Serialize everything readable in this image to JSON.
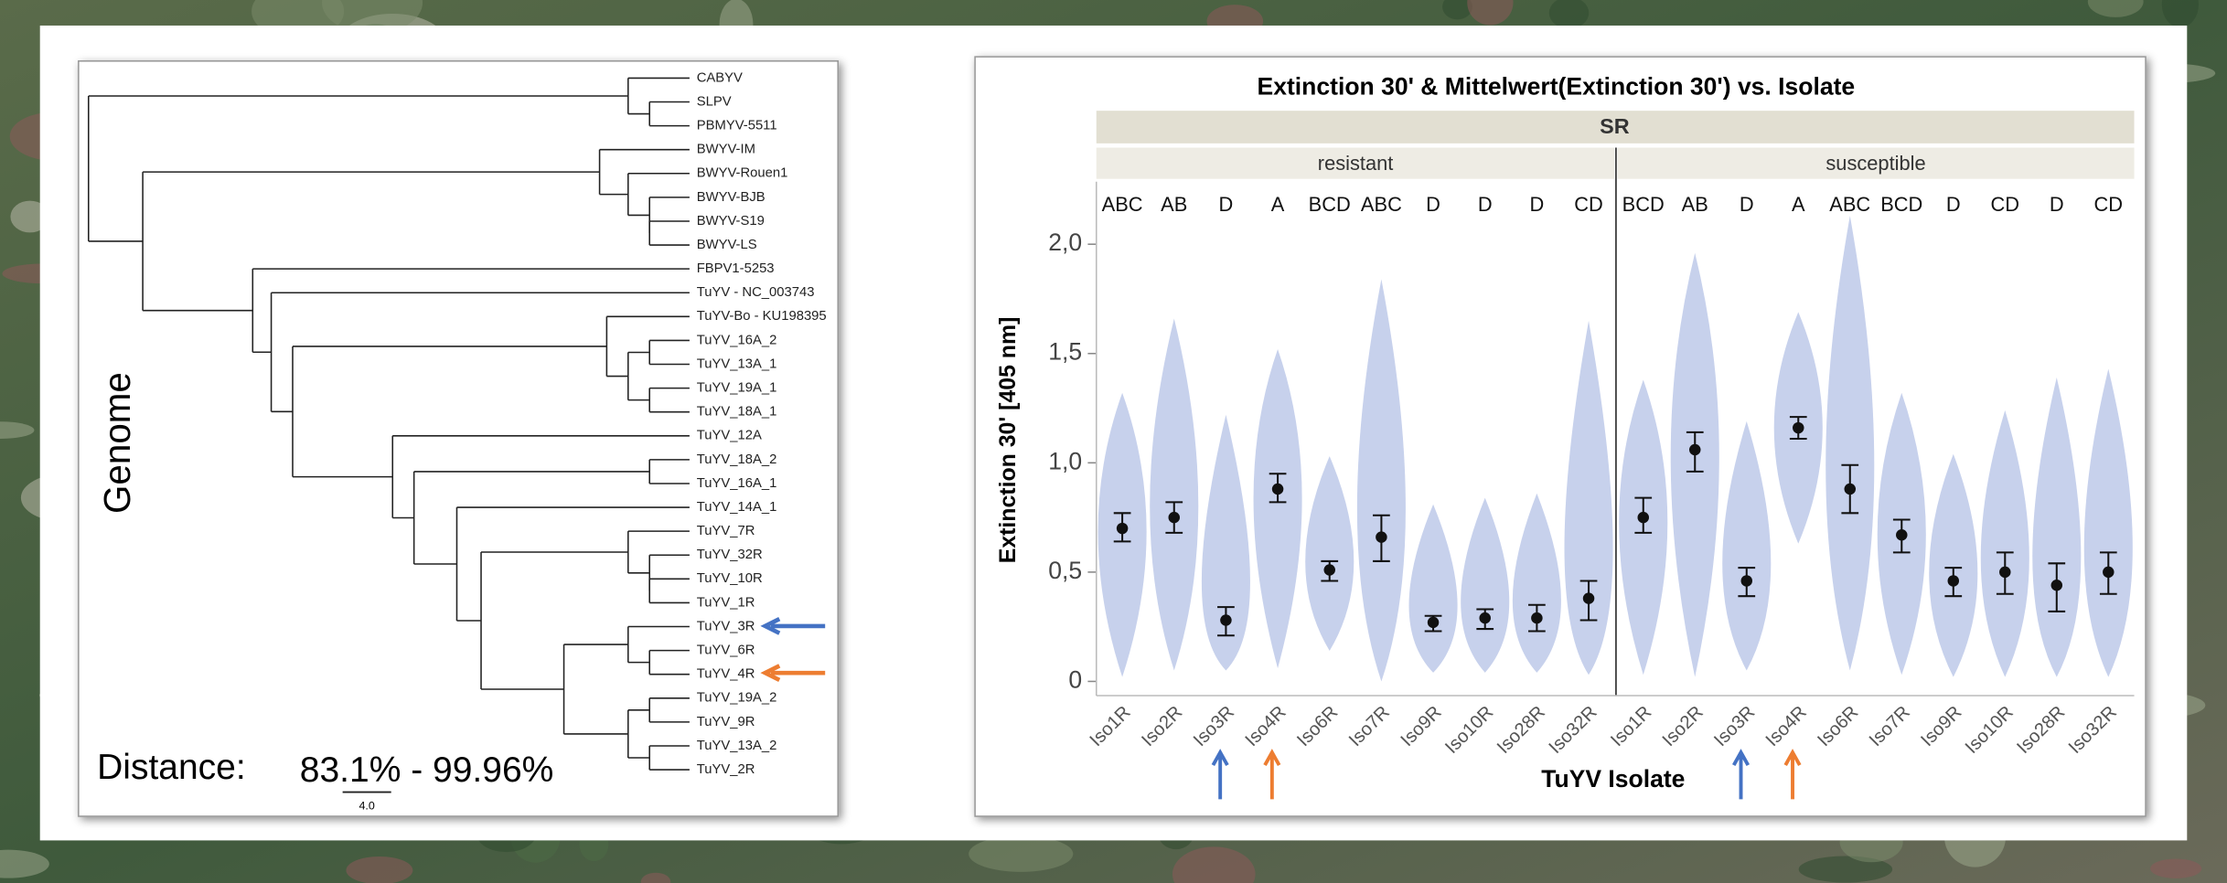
{
  "tree": {
    "title": "Genome",
    "leaves": [
      "CABYV",
      "SLPV",
      "PBMYV-5511",
      "BWYV-IM",
      "BWYV-Rouen1",
      "BWYV-BJB",
      "BWYV-S19",
      "BWYV-LS",
      "FBPV1-5253",
      "TuYV - NC_003743",
      "TuYV-Bo - KU198395",
      "TuYV_16A_2",
      "TuYV_13A_1",
      "TuYV_19A_1",
      "TuYV_18A_1",
      "TuYV_12A",
      "TuYV_18A_2",
      "TuYV_16A_1",
      "TuYV_14A_1",
      "TuYV_7R",
      "TuYV_32R",
      "TuYV_10R",
      "TuYV_1R",
      "TuYV_3R",
      "TuYV_6R",
      "TuYV_4R",
      "TuYV_19A_2",
      "TuYV_9R",
      "TuYV_13A_2",
      "TuYV_2R"
    ],
    "distance_label": "Distance:",
    "distance_range": "83.1% - 99.96%",
    "scale_label": "4.0"
  },
  "chart_data": {
    "type": "violin",
    "title": "Extinction 30' & Mittelwert(Extinction 30') vs. Isolate",
    "facet_title": "SR",
    "y_label": "Extinction 30' [405 nm]",
    "x_label": "TuYV Isolate",
    "ylim": [
      -0.065,
      2.286
    ],
    "yticks": [
      0,
      {
        "value": 0.5,
        "label": "0,5"
      },
      {
        "value": 1.0,
        "label": "1,0"
      },
      {
        "value": 1.5,
        "label": "1,5"
      },
      {
        "value": 2.0,
        "label": "2,0"
      }
    ],
    "color": "#c7d1ec",
    "panels": [
      {
        "name": "resistant",
        "categories": [
          "Iso1R",
          "Iso2R",
          "Iso3R",
          "Iso4R",
          "Iso6R",
          "Iso7R",
          "Iso9R",
          "Iso10R",
          "Iso28R",
          "Iso32R"
        ],
        "letters": [
          "ABC",
          "AB",
          "D",
          "A",
          "BCD",
          "ABC",
          "D",
          "D",
          "D",
          "CD"
        ],
        "means": [
          0.7,
          0.75,
          0.28,
          0.88,
          0.51,
          0.66,
          0.27,
          0.29,
          0.29,
          0.38
        ],
        "lower": [
          0.64,
          0.68,
          0.21,
          0.82,
          0.46,
          0.55,
          0.23,
          0.24,
          0.23,
          0.28
        ],
        "upper": [
          0.77,
          0.82,
          0.34,
          0.95,
          0.55,
          0.76,
          0.3,
          0.33,
          0.35,
          0.46
        ],
        "min": [
          0.02,
          0.05,
          0.05,
          0.06,
          0.14,
          0.0,
          0.04,
          0.04,
          0.04,
          0.03
        ],
        "max": [
          1.32,
          1.66,
          1.22,
          1.52,
          1.03,
          1.84,
          0.81,
          0.84,
          0.86,
          1.65
        ]
      },
      {
        "name": "susceptible",
        "categories": [
          "Iso1R",
          "Iso2R",
          "Iso3R",
          "Iso4R",
          "Iso6R",
          "Iso7R",
          "Iso9R",
          "Iso10R",
          "Iso28R",
          "Iso32R"
        ],
        "letters": [
          "BCD",
          "AB",
          "D",
          "A",
          "ABC",
          "BCD",
          "D",
          "CD",
          "D",
          "CD"
        ],
        "means": [
          0.75,
          1.06,
          0.46,
          1.16,
          0.88,
          0.67,
          0.46,
          0.5,
          0.44,
          0.5
        ],
        "lower": [
          0.68,
          0.96,
          0.39,
          1.11,
          0.77,
          0.59,
          0.39,
          0.4,
          0.32,
          0.4
        ],
        "upper": [
          0.84,
          1.14,
          0.52,
          1.21,
          0.99,
          0.74,
          0.52,
          0.59,
          0.54,
          0.59
        ],
        "min": [
          0.03,
          0.02,
          0.05,
          0.63,
          0.05,
          0.03,
          0.02,
          0.02,
          0.02,
          0.02
        ],
        "max": [
          1.38,
          1.96,
          1.19,
          1.69,
          2.13,
          1.32,
          1.04,
          1.24,
          1.39,
          1.43
        ]
      }
    ]
  }
}
